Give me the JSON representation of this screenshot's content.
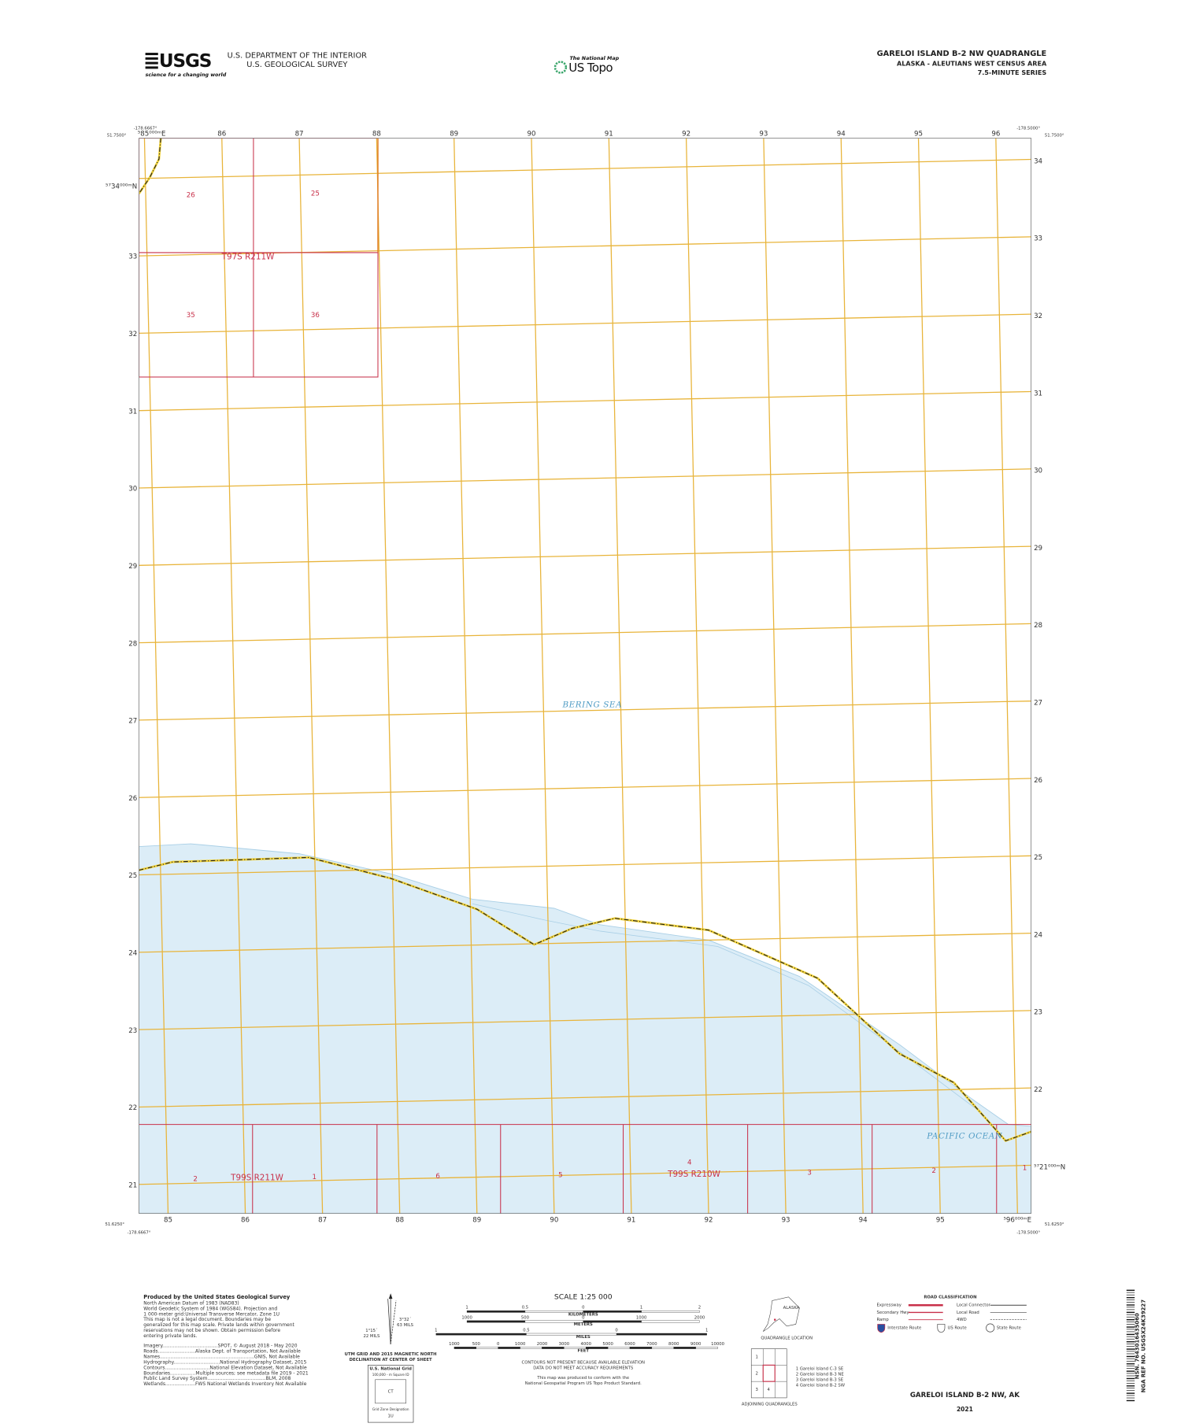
{
  "header": {
    "usgs_logo": "USGS",
    "usgs_tagline": "science for a changing world",
    "agency_line1": "U.S. DEPARTMENT OF THE INTERIOR",
    "agency_line2": "U.S. GEOLOGICAL SURVEY",
    "national_map": "The National Map",
    "us_topo": "US Topo",
    "quad_title": "GARELOI ISLAND B-2 NW QUADRANGLE",
    "quad_subtitle": "ALASKA - ALEUTIANS WEST CENSUS AREA",
    "series": "7.5-MINUTE SERIES"
  },
  "map": {
    "corners": {
      "top_left_lon": "-178.6667°",
      "top_left_lat": "51.7500°",
      "top_right_lon": "-178.5000°",
      "top_right_lat": "51.7500°",
      "bottom_left_lat": "51.6250°",
      "bottom_left_lon": "-178.6667°",
      "bottom_right_lat": "51.6250°",
      "bottom_right_lon": "-178.5000°"
    },
    "eastings_top": [
      "⁵85⁰⁰⁰ᵐE",
      "86",
      "87",
      "88",
      "89",
      "90",
      "91",
      "92",
      "93",
      "94",
      "95",
      "96"
    ],
    "eastings_bottom": [
      "85",
      "86",
      "87",
      "88",
      "89",
      "90",
      "91",
      "92",
      "93",
      "94",
      "95",
      "⁵96⁰⁰⁰ᵐE"
    ],
    "northings_left": [
      "⁵⁷34⁰⁰⁰ᵐN",
      "33",
      "32",
      "31",
      "30",
      "29",
      "28",
      "27",
      "26",
      "25",
      "24",
      "23",
      "22",
      "21"
    ],
    "northings_right": [
      "34",
      "33",
      "32",
      "31",
      "30",
      "29",
      "28",
      "27",
      "26",
      "25",
      "24",
      "23",
      "22",
      "⁵⁷21⁰⁰⁰ᵐN"
    ],
    "sections_top": [
      "26",
      "25",
      "35",
      "36"
    ],
    "township_top": "T97S R211W",
    "sections_bottom": [
      "2",
      "1",
      "6",
      "5",
      "4",
      "3",
      "2",
      "1"
    ],
    "township_bottom_west": "T99S R211W",
    "township_bottom_east": "T99S R210W",
    "water_north": "BERING SEA",
    "water_south": "PACIFIC OCEAN"
  },
  "footer": {
    "produced_by": "Produced by the United States Geological Survey",
    "notes": [
      "North American Datum of 1983 (NAD83)",
      "World Geodetic System of 1984 (WGS84). Projection and",
      "1 000-meter grid:Universal Transverse Mercator, Zone 1U",
      "This map is not a legal document. Boundaries may be",
      "generalized for this map scale. Private lands within government",
      "reservations may not be shown. Obtain permission before",
      "entering private lands."
    ],
    "credits": [
      "Imagery.....................................SPOT, © August 2018 - May 2020",
      "Roads.........................Alaska Dept. of Transportation, Not Available",
      "Names...............................................................GNIS, Not Available",
      "Hydrography...............................National Hydrography Dataset, 2015",
      "Contours..............................National Elevation Dataset, Not Available",
      "Boundaries.................Multiple sources; see metadata file 2019 - 2021",
      "Public Land Survey System.......................................BLM, 2008",
      "Wetlands....................FWS National Wetlands Inventory Not Available"
    ],
    "declination": {
      "grid_angle": "1°15´",
      "grid_mils": "22 MILS",
      "mag_angle": "3°32´",
      "mag_mils": "63 MILS",
      "caption1": "UTM GRID AND 2015 MAGNETIC NORTH",
      "caption2": "DECLINATION AT CENTER OF SHEET",
      "usng_title": "U.S. National Grid",
      "usng_square": "100,000 - m Square ID",
      "usng_id": "CT",
      "usng_gzd_label": "Grid Zone Designation",
      "usng_gzd": "1U"
    },
    "scale": {
      "title": "SCALE 1:25 000",
      "km_label": "KILOMETERS",
      "km_ticks": [
        "1",
        "0.5",
        "0",
        "1",
        "2"
      ],
      "m_label": "METERS",
      "m_ticks": [
        "1000",
        "500",
        "0",
        "1000",
        "2000"
      ],
      "mi_label": "MILES",
      "mi_ticks": [
        "1",
        "0.5",
        "0",
        "1"
      ],
      "ft_label": "FEET",
      "ft_ticks": [
        "1000",
        "500",
        "0",
        "1000",
        "2000",
        "3000",
        "4000",
        "5000",
        "6000",
        "7000",
        "8000",
        "9000",
        "10000"
      ]
    },
    "contour_notes": [
      "CONTOURS NOT PRESENT BECAUSE AVAILABLE ELEVATION",
      "DATA DO NOT MEET ACCURACY REQUIREMENTS",
      "This map was produced to conform with the",
      "National Geospatial Program US Topo Product Standard."
    ],
    "location": {
      "state": "ALASKA",
      "caption": "QUADRANGLE LOCATION"
    },
    "adjoining": {
      "cells": [
        "1",
        "2",
        "3",
        "4"
      ],
      "caption": "ADJOINING QUADRANGLES",
      "names": [
        "1 Gareloi Island C-3 SE",
        "2 Gareloi Island B-3 NE",
        "3 Gareloi Island B-3 SE",
        "4 Gareloi Island B-2 SW"
      ]
    },
    "roads": {
      "title": "ROAD CLASSIFICATION",
      "left": [
        "Expressway",
        "Secondary Hwy",
        "Ramp"
      ],
      "right": [
        "Local Connector",
        "Local Road",
        "4WD"
      ],
      "shields": [
        "Interstate Route",
        "US Route",
        "State Route"
      ]
    },
    "bottom_title": "GARELOI ISLAND B-2 NW,  AK",
    "year": "2021",
    "barcode_line1": "NSN. 7643016435060",
    "barcode_line2": "NGA REF NO. USGSX24K39227"
  }
}
